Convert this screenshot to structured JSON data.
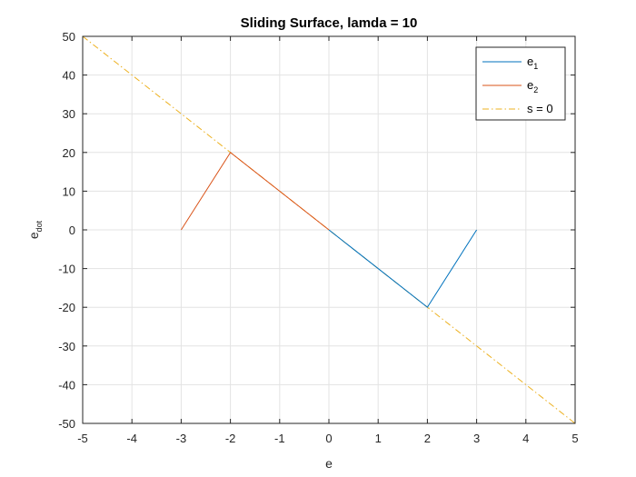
{
  "chart_data": {
    "type": "line",
    "title": "Sliding Surface, lamda = 10",
    "xlabel": "e",
    "ylabel": {
      "base": "e",
      "sub": "dot"
    },
    "xlim": [
      -5,
      5
    ],
    "ylim": [
      -50,
      50
    ],
    "xticks": [
      -5,
      -4,
      -3,
      -2,
      -1,
      0,
      1,
      2,
      3,
      4,
      5
    ],
    "yticks": [
      -50,
      -40,
      -30,
      -20,
      -10,
      0,
      10,
      20,
      30,
      40,
      50
    ],
    "grid": true,
    "legend_position": "top-right",
    "series": [
      {
        "name": "e",
        "name_sub": "1",
        "color": "#0072BD",
        "style": "solid",
        "x": [
          3,
          2,
          0
        ],
        "y": [
          0,
          -20,
          0
        ]
      },
      {
        "name": "e",
        "name_sub": "2",
        "color": "#D95319",
        "style": "solid",
        "x": [
          -3,
          -2,
          0
        ],
        "y": [
          0,
          20,
          0
        ]
      },
      {
        "name": "s = 0",
        "name_sub": "",
        "color": "#EDB120",
        "style": "dashdot",
        "x": [
          -5,
          5
        ],
        "y": [
          50,
          -50
        ]
      }
    ]
  }
}
